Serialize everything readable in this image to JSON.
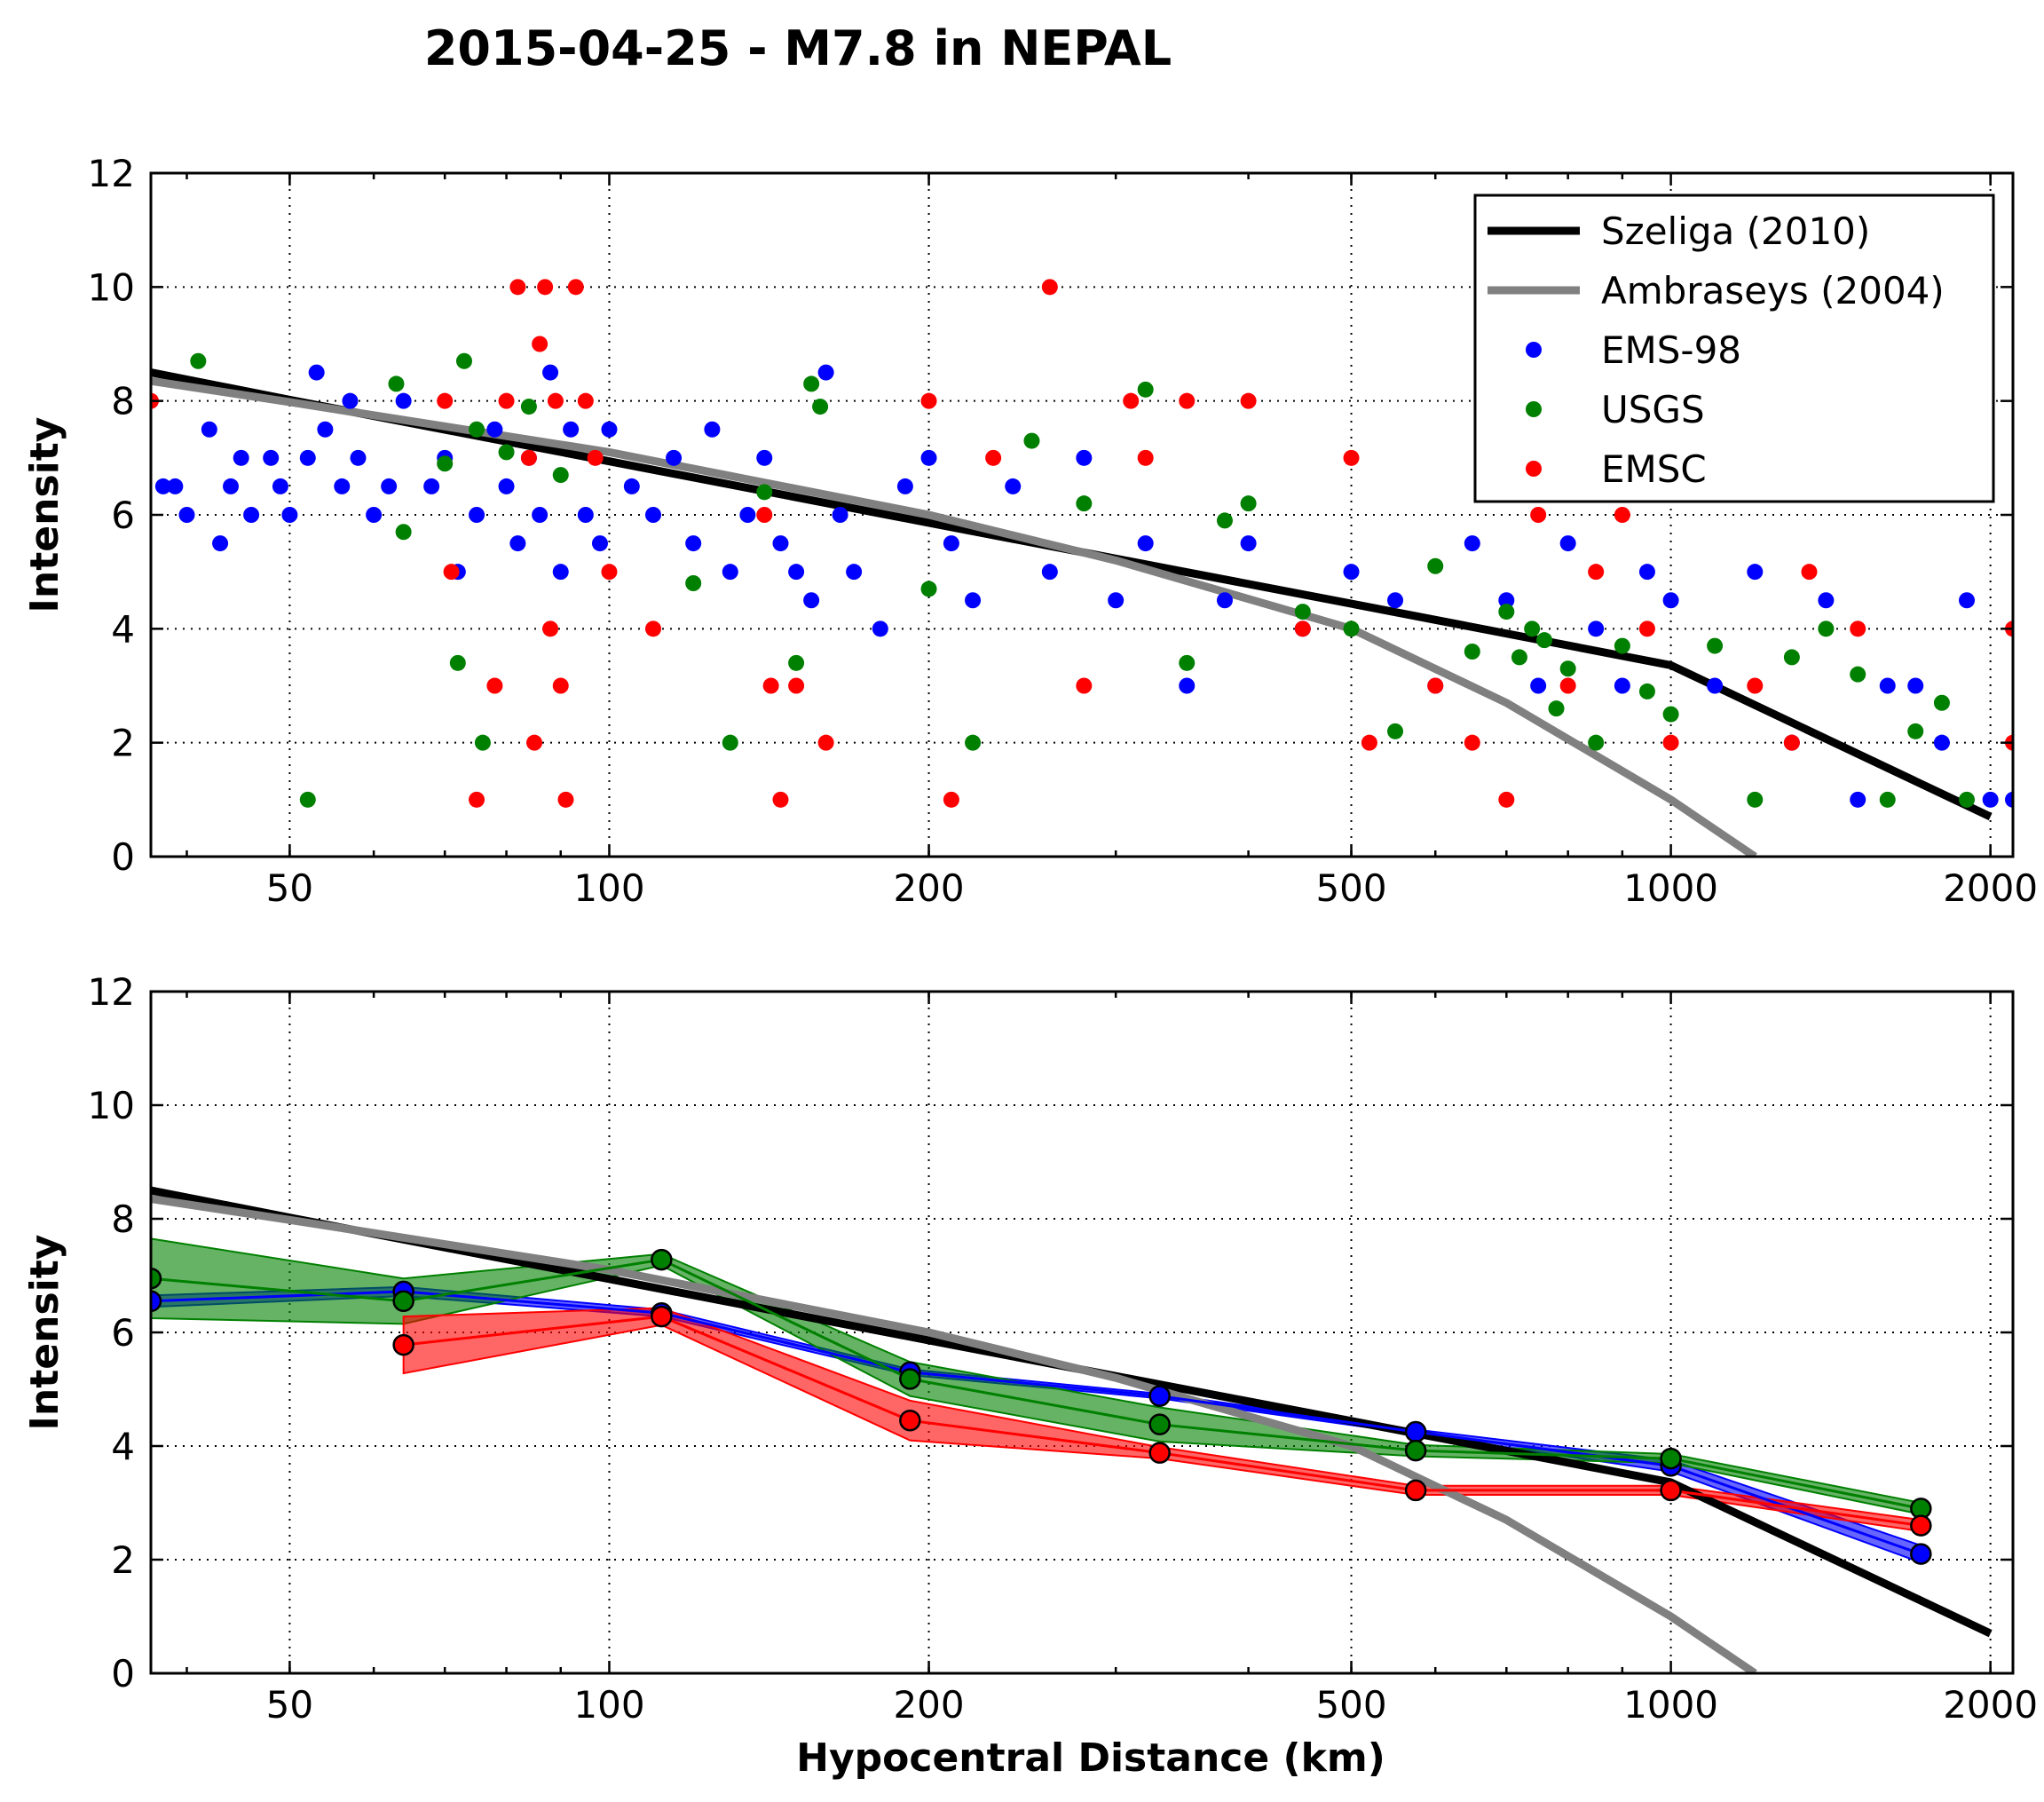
{
  "title": "2015-04-25 - M7.8 in NEPAL",
  "colors": {
    "ems98": "#0000ff",
    "usgs": "#008000",
    "emsc": "#ff0000",
    "szeliga": "#000000",
    "ambraseys": "#808080"
  },
  "chart_data": [
    {
      "type": "scatter",
      "panel": "top",
      "xscale": "log",
      "xlim": [
        37,
        2100
      ],
      "ylim": [
        0,
        12
      ],
      "xticks": [
        "50",
        "100",
        "200",
        "500",
        "1000",
        "2000"
      ],
      "yticks": [
        "0",
        "2",
        "4",
        "6",
        "8",
        "10",
        "12"
      ],
      "xlabel": "",
      "ylabel": "Intensity",
      "grid": true,
      "legend_position": "top-right",
      "legend": [
        "Szeliga (2010)",
        "Ambraseys (2004)",
        "EMS-98",
        "USGS",
        "EMSC"
      ],
      "lines": [
        {
          "name": "Szeliga (2010)",
          "x": [
            37,
            50,
            100,
            200,
            500,
            1000,
            2000
          ],
          "y": [
            8.5,
            8.02,
            6.94,
            5.86,
            4.44,
            3.36,
            0.7
          ]
        },
        {
          "name": "Ambraseys (2004)",
          "x": [
            37,
            50,
            100,
            200,
            300,
            500,
            700,
            1000,
            1200
          ],
          "y": [
            8.35,
            7.98,
            7.1,
            6.0,
            5.2,
            4.0,
            2.7,
            1.0,
            0.0
          ]
        }
      ],
      "series": [
        {
          "name": "EMS-98",
          "points": [
            [
              38,
              6.5
            ],
            [
              39,
              6.5
            ],
            [
              40,
              6.0
            ],
            [
              42,
              7.5
            ],
            [
              43,
              5.5
            ],
            [
              44,
              6.5
            ],
            [
              45,
              7.0
            ],
            [
              46,
              6.0
            ],
            [
              48,
              7.0
            ],
            [
              49,
              6.5
            ],
            [
              50,
              6.0
            ],
            [
              52,
              7.0
            ],
            [
              53,
              8.5
            ],
            [
              54,
              7.5
            ],
            [
              56,
              6.5
            ],
            [
              57,
              8.0
            ],
            [
              58,
              7.0
            ],
            [
              60,
              6.0
            ],
            [
              62,
              6.5
            ],
            [
              64,
              8.0
            ],
            [
              68,
              6.5
            ],
            [
              70,
              7.0
            ],
            [
              72,
              5.0
            ],
            [
              75,
              6.0
            ],
            [
              78,
              7.5
            ],
            [
              80,
              6.5
            ],
            [
              82,
              5.5
            ],
            [
              84,
              7.0
            ],
            [
              86,
              6.0
            ],
            [
              88,
              8.5
            ],
            [
              90,
              5.0
            ],
            [
              92,
              7.5
            ],
            [
              95,
              6.0
            ],
            [
              98,
              5.5
            ],
            [
              100,
              7.5
            ],
            [
              105,
              6.5
            ],
            [
              110,
              6.0
            ],
            [
              115,
              7.0
            ],
            [
              120,
              5.5
            ],
            [
              125,
              7.5
            ],
            [
              130,
              5.0
            ],
            [
              135,
              6.0
            ],
            [
              140,
              7.0
            ],
            [
              145,
              5.5
            ],
            [
              150,
              5.0
            ],
            [
              155,
              4.5
            ],
            [
              160,
              8.5
            ],
            [
              165,
              6.0
            ],
            [
              170,
              5.0
            ],
            [
              180,
              4.0
            ],
            [
              190,
              6.5
            ],
            [
              200,
              7.0
            ],
            [
              210,
              5.5
            ],
            [
              220,
              4.5
            ],
            [
              240,
              6.5
            ],
            [
              260,
              5.0
            ],
            [
              280,
              7.0
            ],
            [
              300,
              4.5
            ],
            [
              320,
              5.5
            ],
            [
              350,
              3.0
            ],
            [
              380,
              4.5
            ],
            [
              400,
              5.5
            ],
            [
              450,
              4.0
            ],
            [
              500,
              5.0
            ],
            [
              550,
              4.5
            ],
            [
              600,
              3.0
            ],
            [
              650,
              5.5
            ],
            [
              700,
              4.5
            ],
            [
              750,
              3.0
            ],
            [
              800,
              5.5
            ],
            [
              850,
              4.0
            ],
            [
              900,
              3.0
            ],
            [
              950,
              5.0
            ],
            [
              1000,
              4.5
            ],
            [
              1100,
              3.0
            ],
            [
              1200,
              5.0
            ],
            [
              1300,
              2.0
            ],
            [
              1400,
              4.5
            ],
            [
              1500,
              1.0
            ],
            [
              1600,
              3.0
            ],
            [
              1700,
              3.0
            ],
            [
              1800,
              2.0
            ],
            [
              1900,
              4.5
            ],
            [
              2000,
              1.0
            ],
            [
              2100,
              1.0
            ]
          ]
        },
        {
          "name": "USGS",
          "points": [
            [
              41,
              8.7
            ],
            [
              52,
              1.0
            ],
            [
              63,
              8.3
            ],
            [
              64,
              5.7
            ],
            [
              70,
              6.9
            ],
            [
              72,
              3.4
            ],
            [
              73,
              8.7
            ],
            [
              75,
              7.5
            ],
            [
              76,
              2.0
            ],
            [
              80,
              7.1
            ],
            [
              84,
              7.9
            ],
            [
              90,
              6.7
            ],
            [
              120,
              4.8
            ],
            [
              130,
              2.0
            ],
            [
              140,
              6.4
            ],
            [
              150,
              3.4
            ],
            [
              155,
              8.3
            ],
            [
              158,
              7.9
            ],
            [
              200,
              4.7
            ],
            [
              220,
              2.0
            ],
            [
              250,
              7.3
            ],
            [
              280,
              6.2
            ],
            [
              320,
              8.2
            ],
            [
              350,
              3.4
            ],
            [
              380,
              5.9
            ],
            [
              400,
              6.2
            ],
            [
              450,
              4.3
            ],
            [
              500,
              4.0
            ],
            [
              550,
              2.2
            ],
            [
              600,
              5.1
            ],
            [
              650,
              3.6
            ],
            [
              700,
              4.3
            ],
            [
              720,
              3.5
            ],
            [
              740,
              4.0
            ],
            [
              760,
              3.8
            ],
            [
              780,
              2.6
            ],
            [
              800,
              3.3
            ],
            [
              850,
              2.0
            ],
            [
              900,
              3.7
            ],
            [
              950,
              2.9
            ],
            [
              1000,
              2.5
            ],
            [
              1100,
              3.7
            ],
            [
              1200,
              1.0
            ],
            [
              1300,
              3.5
            ],
            [
              1400,
              4.0
            ],
            [
              1500,
              3.2
            ],
            [
              1600,
              1.0
            ],
            [
              1700,
              2.2
            ],
            [
              1800,
              2.7
            ],
            [
              1900,
              1.0
            ]
          ]
        },
        {
          "name": "EMSC",
          "points": [
            [
              37,
              8.0
            ],
            [
              70,
              8.0
            ],
            [
              71,
              5.0
            ],
            [
              75,
              1.0
            ],
            [
              78,
              3.0
            ],
            [
              80,
              8.0
            ],
            [
              82,
              10.0
            ],
            [
              84,
              7.0
            ],
            [
              85,
              2.0
            ],
            [
              86,
              9.0
            ],
            [
              87,
              10.0
            ],
            [
              88,
              4.0
            ],
            [
              89,
              8.0
            ],
            [
              90,
              3.0
            ],
            [
              91,
              1.0
            ],
            [
              93,
              10.0
            ],
            [
              95,
              8.0
            ],
            [
              97,
              7.0
            ],
            [
              100,
              5.0
            ],
            [
              110,
              4.0
            ],
            [
              140,
              6.0
            ],
            [
              142,
              3.0
            ],
            [
              145,
              1.0
            ],
            [
              150,
              3.0
            ],
            [
              160,
              2.0
            ],
            [
              200,
              8.0
            ],
            [
              210,
              1.0
            ],
            [
              230,
              7.0
            ],
            [
              260,
              10.0
            ],
            [
              280,
              3.0
            ],
            [
              310,
              8.0
            ],
            [
              320,
              7.0
            ],
            [
              350,
              8.0
            ],
            [
              400,
              8.0
            ],
            [
              450,
              4.0
            ],
            [
              500,
              7.0
            ],
            [
              520,
              2.0
            ],
            [
              600,
              3.0
            ],
            [
              650,
              2.0
            ],
            [
              700,
              1.0
            ],
            [
              750,
              6.0
            ],
            [
              800,
              3.0
            ],
            [
              850,
              5.0
            ],
            [
              900,
              6.0
            ],
            [
              950,
              4.0
            ],
            [
              1000,
              2.0
            ],
            [
              1200,
              3.0
            ],
            [
              1300,
              2.0
            ],
            [
              1350,
              5.0
            ],
            [
              1500,
              4.0
            ],
            [
              2100,
              4.0
            ],
            [
              2100,
              2.0
            ]
          ]
        }
      ]
    },
    {
      "type": "line",
      "panel": "bottom",
      "xscale": "log",
      "xlim": [
        37,
        2100
      ],
      "ylim": [
        0,
        12
      ],
      "xticks": [
        "50",
        "100",
        "200",
        "500",
        "1000",
        "2000"
      ],
      "yticks": [
        "0",
        "2",
        "4",
        "6",
        "8",
        "10",
        "12"
      ],
      "xlabel": "Hypocentral Distance (km)",
      "ylabel": "Intensity",
      "grid": true,
      "lines": [
        {
          "name": "Szeliga (2010)",
          "x": [
            37,
            50,
            100,
            200,
            500,
            1000,
            2000
          ],
          "y": [
            8.5,
            8.02,
            6.94,
            5.86,
            4.44,
            3.36,
            0.7
          ]
        },
        {
          "name": "Ambraseys (2004)",
          "x": [
            37,
            50,
            100,
            200,
            300,
            500,
            700,
            1000,
            1200
          ],
          "y": [
            8.35,
            7.98,
            7.1,
            6.0,
            5.2,
            4.0,
            2.7,
            1.0,
            0.0
          ]
        }
      ],
      "series": [
        {
          "name": "EMS-98",
          "x": [
            37,
            64,
            112,
            192,
            330,
            575,
            1000,
            1720
          ],
          "y": [
            6.55,
            6.72,
            6.34,
            5.3,
            4.88,
            4.25,
            3.65,
            2.1
          ],
          "band_halfwidth": [
            0.1,
            0.08,
            0.06,
            0.05,
            0.04,
            0.04,
            0.1,
            0.15
          ]
        },
        {
          "name": "USGS",
          "x": [
            37,
            64,
            112,
            192,
            330,
            575,
            1000,
            1720
          ],
          "y": [
            6.95,
            6.55,
            7.28,
            5.18,
            4.38,
            3.92,
            3.78,
            2.9
          ],
          "band_halfwidth": [
            0.7,
            0.4,
            0.1,
            0.3,
            0.3,
            0.1,
            0.08,
            0.1
          ]
        },
        {
          "name": "EMSC",
          "x": [
            64,
            112,
            192,
            330,
            575,
            1000,
            1720
          ],
          "y": [
            5.78,
            6.28,
            4.45,
            3.88,
            3.22,
            3.22,
            2.6
          ],
          "band_halfwidth": [
            0.5,
            0.15,
            0.35,
            0.1,
            0.08,
            0.08,
            0.1
          ]
        }
      ]
    }
  ]
}
